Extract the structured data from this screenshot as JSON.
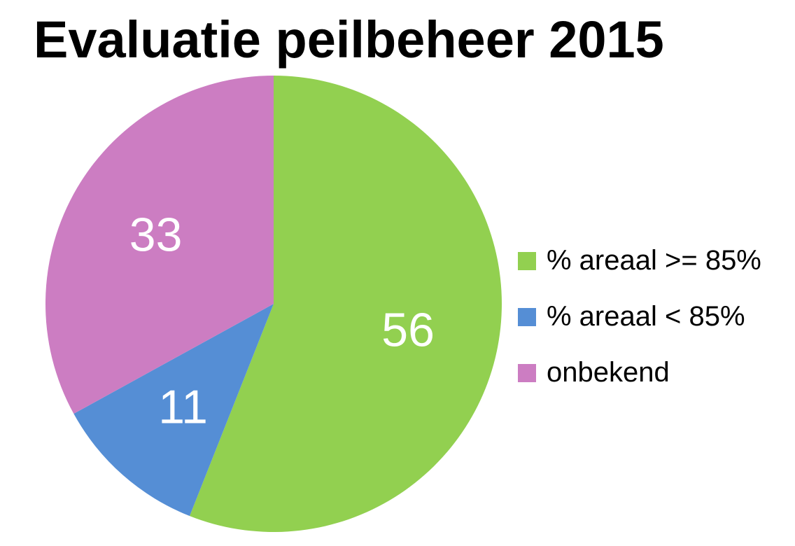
{
  "chart_data": {
    "type": "pie",
    "title": "Evaluatie peilbeheer 2015",
    "categories": [
      "% areaal >= 85%",
      "% areaal < 85%",
      "onbekend"
    ],
    "values": [
      56,
      11,
      33
    ],
    "data_labels": [
      "56",
      "11",
      "33"
    ],
    "colors": [
      "#92d050",
      "#558ed5",
      "#cc7dc2"
    ],
    "start_angle_deg": 0,
    "direction": "clockwise",
    "legend_position": "right"
  }
}
